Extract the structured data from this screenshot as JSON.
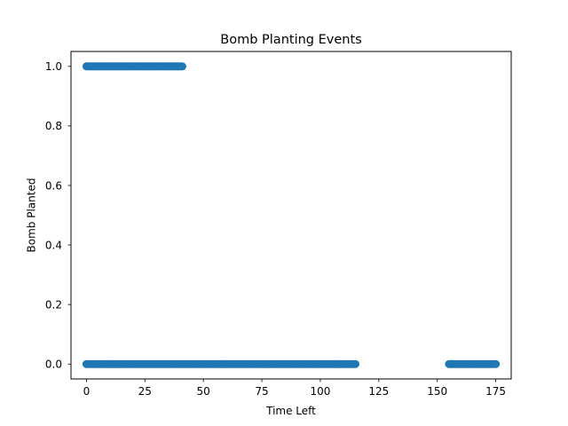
{
  "chart_data": {
    "type": "scatter",
    "title": "Bomb Planting Events",
    "xlabel": "Time Left",
    "ylabel": "Bomb Planted",
    "xlim": [
      -6.6,
      181.6
    ],
    "ylim": [
      -0.05,
      1.05
    ],
    "xticks": [
      0,
      25,
      50,
      75,
      100,
      125,
      150,
      175
    ],
    "xtick_labels": [
      "0",
      "25",
      "50",
      "75",
      "100",
      "125",
      "150",
      "175"
    ],
    "yticks": [
      0.0,
      0.2,
      0.4,
      0.6,
      0.8,
      1.0
    ],
    "ytick_labels": [
      "0.0",
      "0.2",
      "0.4",
      "0.6",
      "0.8",
      "1.0"
    ],
    "grid": false,
    "marker_color": "#1f77b4",
    "series": [
      {
        "ranges": [
          {
            "y": 1,
            "x_start": 0,
            "x_end": 41
          },
          {
            "y": 0,
            "x_start": 0,
            "x_end": 115
          },
          {
            "y": 0,
            "x_start": 155,
            "x_end": 175
          }
        ]
      }
    ]
  }
}
